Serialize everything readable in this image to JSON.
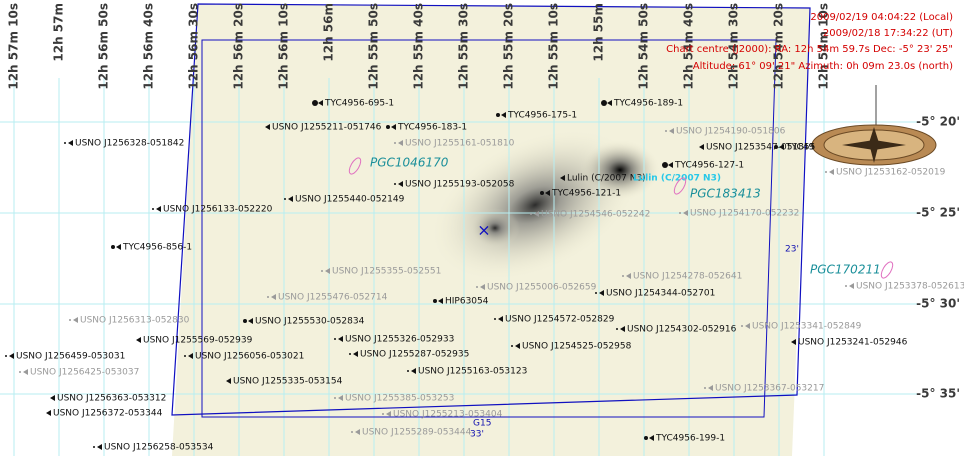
{
  "info": [
    "2009/02/19 04:04:22 (Local)",
    "2009/02/18 17:34:22 (UT)",
    "Chart centre (J2000): RA: 12h 54m 59.7s Dec: -5° 23' 25\"",
    "Altitude: 61° 09' 21\" Azimuth: 0h 09m 23.0s (north)"
  ],
  "ra_labels": [
    "12h 57m 10s",
    "12h 57m",
    "12h 56m 50s",
    "12h 56m 40s",
    "12h 56m 30s",
    "12h 56m 20s",
    "12h 56m 10s",
    "12h 56m",
    "12h 55m 50s",
    "12h 55m 40s",
    "12h 55m 30s",
    "12h 55m 20s",
    "12h 55m 10s",
    "12h 55m",
    "12h 54m 50s",
    "12h 54m 40s",
    "12h 54m 30s",
    "12h 54m 20s",
    "12h 54m 10s"
  ],
  "dec_labels": [
    "-5° 20'",
    "-5° 25'",
    "-5° 30'",
    "-5° 35'"
  ],
  "objects": [
    "TYC4956-695-1",
    "USNO J1255211-051746",
    "TYC4956-183-1",
    "TYC4956-175-1",
    "TYC4956-189-1",
    "USNO J1253547-051855",
    "TYC49",
    "TYC4956-127-1",
    "Lulin (C/2007 N3)",
    "TYC4956-121-1",
    "USNO J1255193-052058",
    "USNO J1255440-052149",
    "USNO J1256328-051842",
    "USNO J1256133-052220",
    "TYC4956-856-1",
    "HIP63054",
    "USNO J1254344-052701",
    "USNO J1255530-052834",
    "USNO J1254572-052829",
    "USNO J1255569-052939",
    "USNO J1255326-052933",
    "USNO J1254302-052916",
    "USNO J1253241-052946",
    "USNO J1256056-053021",
    "USNO J1255287-052935",
    "USNO J1256459-053031",
    "USNO J1254525-052958",
    "USNO J1255163-053123",
    "USNO J1255335-053154",
    "USNO J1256363-053312",
    "USNO J1256372-053344",
    "USNO J1256258-053534",
    "TYC4956-199-1",
    "USNO J1255161-051810",
    "USNO J1254190-051806",
    "USNO J1253162-052019",
    "USNO J1254170-052232",
    "USNO J1254546-052242",
    "USNO J1255355-052551",
    "USNO J1254278-052641",
    "USNO J1255476-052714",
    "USNO J1255006-052659",
    "USNO J1253378-052613",
    "USNO J1256313-052830",
    "USNO J1253341-052849",
    "USNO J1253367-053217",
    "USNO J1255385-053253",
    "USNO J1255213-053404",
    "USNO J1255289-053444",
    "USNO J1256425-053037"
  ],
  "comet": "Lulin (C/2007 N3)",
  "galaxies": [
    "PGC1046170",
    "PGC183413",
    "PGC170211"
  ],
  "fov_labels": [
    "23'",
    "G15",
    "33'"
  ]
}
